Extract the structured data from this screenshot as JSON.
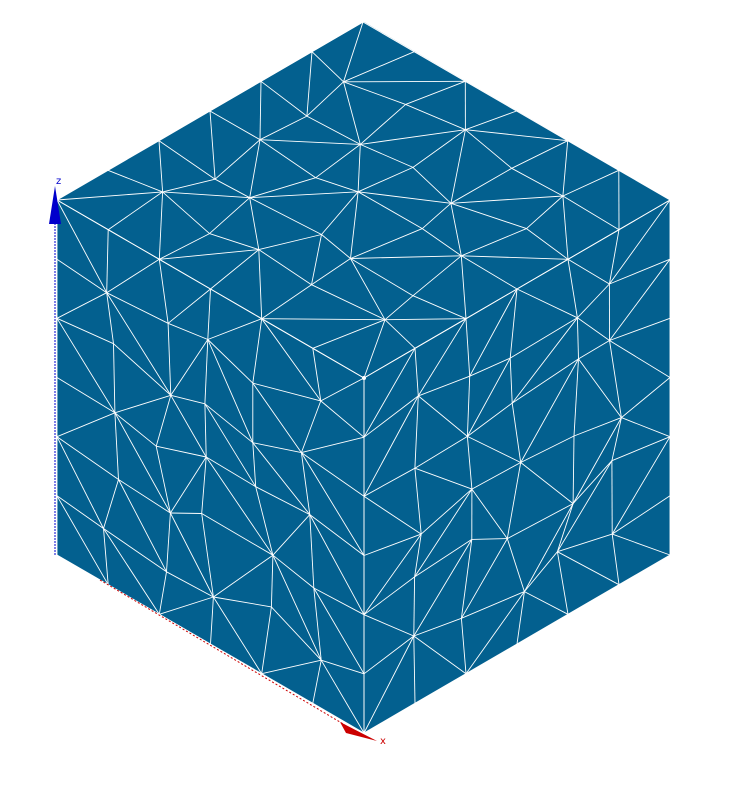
{
  "view": {
    "background": "#ffffff",
    "mesh_fill": "#03608f",
    "edge_color": "#ffffff"
  },
  "axes": {
    "z": {
      "label": "z",
      "color": "#0000cc"
    },
    "x": {
      "label": "x",
      "color": "#cc0000"
    }
  }
}
